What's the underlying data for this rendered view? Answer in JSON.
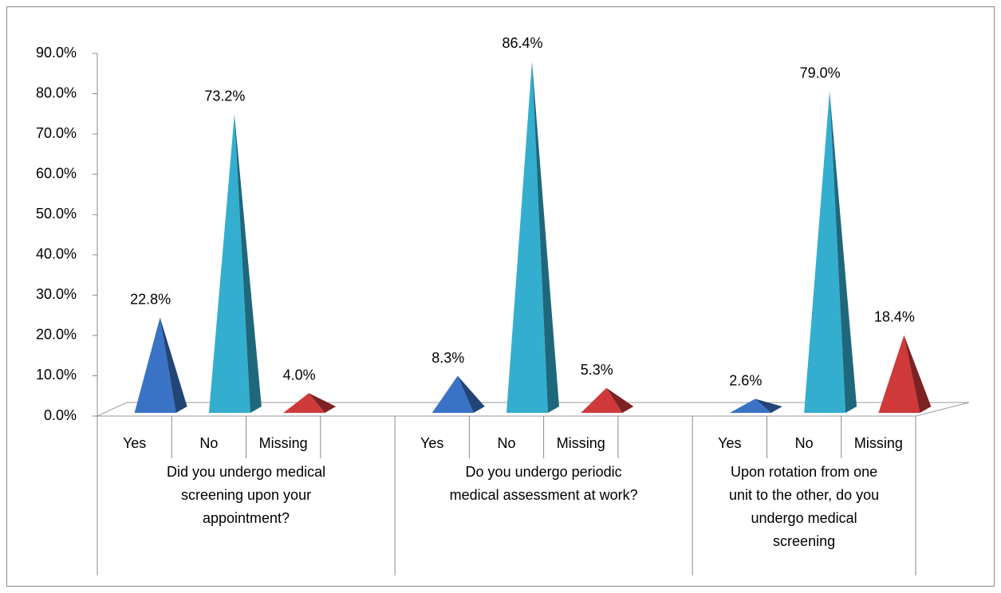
{
  "chart_data": {
    "type": "pyramid",
    "categories": [
      "Yes",
      "No",
      "Missing",
      null,
      "Yes",
      "No",
      "Missing",
      null,
      "Yes",
      "No",
      "Missing"
    ],
    "groups": [
      "Did you undergo medical screening upon your appointment?",
      "Do you undergo periodic medical assessment at work?",
      "Upon rotation from one unit to the other, do you undergo medical screening"
    ],
    "values": [
      22.8,
      73.2,
      4.0,
      null,
      8.3,
      86.4,
      5.3,
      null,
      2.6,
      79.0,
      18.4
    ],
    "value_labels": [
      "22.8%",
      "73.2%",
      "4.0%",
      null,
      "8.3%",
      "86.4%",
      "5.3%",
      null,
      "2.6%",
      "79.0%",
      "18.4%"
    ],
    "colors": [
      "#3a72c6",
      "#33aecf",
      "#d0393a",
      null,
      "#3a72c6",
      "#33aecf",
      "#d0393a",
      null,
      "#3a72c6",
      "#33aecf",
      "#d0393a"
    ],
    "ylim": [
      0,
      90
    ],
    "yticks": [
      {
        "value": 0,
        "label": "0.0%"
      },
      {
        "value": 10,
        "label": "10.0%"
      },
      {
        "value": 20,
        "label": "20.0%"
      },
      {
        "value": 30,
        "label": "30.0%"
      },
      {
        "value": 40,
        "label": "40.0%"
      },
      {
        "value": 50,
        "label": "50.0%"
      },
      {
        "value": 60,
        "label": "60.0%"
      },
      {
        "value": 70,
        "label": "70.0%"
      },
      {
        "value": 80,
        "label": "80.0%"
      },
      {
        "value": 90,
        "label": "90.0%"
      }
    ]
  }
}
